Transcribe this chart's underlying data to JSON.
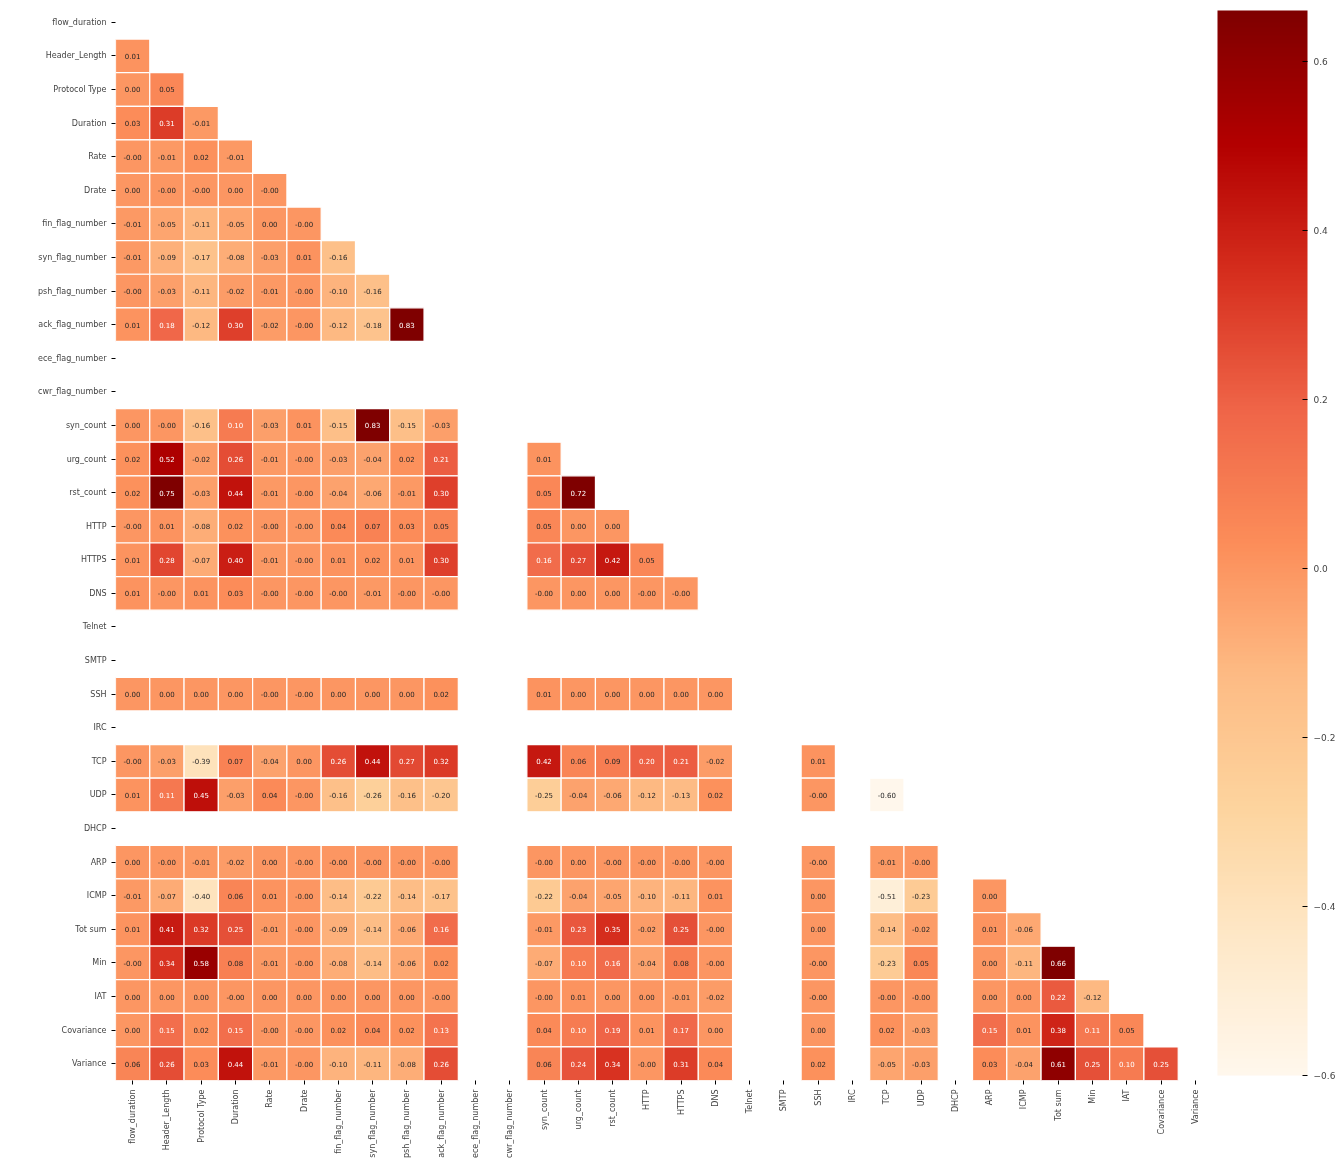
{
  "chart_data": {
    "type": "heatmap",
    "categories": [
      "flow_duration",
      "Header_Length",
      "Protocol Type",
      "Duration",
      "Rate",
      "Drate",
      "fin_flag_number",
      "syn_flag_number",
      "psh_flag_number",
      "ack_flag_number",
      "ece_flag_number",
      "cwr_flag_number",
      "syn_count",
      "urg_count",
      "rst_count",
      "HTTP",
      "HTTPS",
      "DNS",
      "Telnet",
      "SMTP",
      "SSH",
      "IRC",
      "TCP",
      "UDP",
      "DHCP",
      "ARP",
      "ICMP",
      "Tot sum",
      "Min",
      "IAT",
      "Covariance",
      "Variance"
    ],
    "y_categories": [
      "flow_duration",
      "Header_Length",
      "Protocol Type",
      "Duration",
      "Rate",
      "Drate",
      "fin_flag_number",
      "syn_flag_number",
      "psh_flag_number",
      "ack_flag_number",
      "ece_flag_number",
      "cwr_flag_number",
      "syn_count",
      "urg_count",
      "rst_count",
      "HTTP",
      "HTTPS",
      "DNS",
      "Telnet",
      "SMTP",
      "SSH",
      "IRC",
      "TCP",
      "UDP",
      "DHCP",
      "ARP",
      "ICMP",
      "Tot sum",
      "Min",
      "IAT",
      "Covariance",
      "Variance"
    ],
    "cells": [
      [
        null,
        null,
        null,
        null,
        null,
        null,
        null,
        null,
        null,
        null,
        null,
        null,
        null,
        null,
        null,
        null,
        null,
        null,
        null,
        null,
        null,
        null,
        null,
        null,
        null,
        null,
        null,
        null,
        null,
        null,
        null,
        null
      ],
      [
        0.01,
        null,
        null,
        null,
        null,
        null,
        null,
        null,
        null,
        null,
        null,
        null,
        null,
        null,
        null,
        null,
        null,
        null,
        null,
        null,
        null,
        null,
        null,
        null,
        null,
        null,
        null,
        null,
        null,
        null,
        null,
        null
      ],
      [
        0.0,
        0.05,
        null,
        null,
        null,
        null,
        null,
        null,
        null,
        null,
        null,
        null,
        null,
        null,
        null,
        null,
        null,
        null,
        null,
        null,
        null,
        null,
        null,
        null,
        null,
        null,
        null,
        null,
        null,
        null,
        null,
        null
      ],
      [
        0.03,
        0.31,
        -0.01,
        null,
        null,
        null,
        null,
        null,
        null,
        null,
        null,
        null,
        null,
        null,
        null,
        null,
        null,
        null,
        null,
        null,
        null,
        null,
        null,
        null,
        null,
        null,
        null,
        null,
        null,
        null,
        null,
        null
      ],
      [
        -0.0,
        -0.01,
        0.02,
        -0.01,
        null,
        null,
        null,
        null,
        null,
        null,
        null,
        null,
        null,
        null,
        null,
        null,
        null,
        null,
        null,
        null,
        null,
        null,
        null,
        null,
        null,
        null,
        null,
        null,
        null,
        null,
        null,
        null
      ],
      [
        0.0,
        -0.0,
        -0.0,
        0.0,
        -0.0,
        null,
        null,
        null,
        null,
        null,
        null,
        null,
        null,
        null,
        null,
        null,
        null,
        null,
        null,
        null,
        null,
        null,
        null,
        null,
        null,
        null,
        null,
        null,
        null,
        null,
        null,
        null
      ],
      [
        -0.01,
        -0.05,
        -0.11,
        -0.05,
        0.0,
        -0.0,
        null,
        null,
        null,
        null,
        null,
        null,
        null,
        null,
        null,
        null,
        null,
        null,
        null,
        null,
        null,
        null,
        null,
        null,
        null,
        null,
        null,
        null,
        null,
        null,
        null,
        null
      ],
      [
        -0.01,
        -0.09,
        -0.17,
        -0.08,
        -0.03,
        0.01,
        -0.16,
        null,
        null,
        null,
        null,
        null,
        null,
        null,
        null,
        null,
        null,
        null,
        null,
        null,
        null,
        null,
        null,
        null,
        null,
        null,
        null,
        null,
        null,
        null,
        null,
        null
      ],
      [
        -0.0,
        -0.03,
        -0.11,
        -0.02,
        -0.01,
        -0.0,
        -0.1,
        -0.16,
        null,
        null,
        null,
        null,
        null,
        null,
        null,
        null,
        null,
        null,
        null,
        null,
        null,
        null,
        null,
        null,
        null,
        null,
        null,
        null,
        null,
        null,
        null,
        null
      ],
      [
        0.01,
        0.18,
        -0.12,
        0.3,
        -0.02,
        -0.0,
        -0.12,
        -0.18,
        0.83,
        null,
        null,
        null,
        null,
        null,
        null,
        null,
        null,
        null,
        null,
        null,
        null,
        null,
        null,
        null,
        null,
        null,
        null,
        null,
        null,
        null,
        null,
        null
      ],
      [
        null,
        null,
        null,
        null,
        null,
        null,
        null,
        null,
        null,
        null,
        null,
        null,
        null,
        null,
        null,
        null,
        null,
        null,
        null,
        null,
        null,
        null,
        null,
        null,
        null,
        null,
        null,
        null,
        null,
        null,
        null,
        null
      ],
      [
        null,
        null,
        null,
        null,
        null,
        null,
        null,
        null,
        null,
        null,
        null,
        null,
        null,
        null,
        null,
        null,
        null,
        null,
        null,
        null,
        null,
        null,
        null,
        null,
        null,
        null,
        null,
        null,
        null,
        null,
        null,
        null
      ],
      [
        0.0,
        -0.0,
        -0.16,
        0.1,
        -0.03,
        0.01,
        -0.15,
        0.83,
        -0.15,
        -0.03,
        null,
        null,
        null,
        null,
        null,
        null,
        null,
        null,
        null,
        null,
        null,
        null,
        null,
        null,
        null,
        null,
        null,
        null,
        null,
        null,
        null,
        null
      ],
      [
        0.02,
        0.52,
        -0.02,
        0.26,
        -0.01,
        -0.0,
        -0.03,
        -0.04,
        0.02,
        0.21,
        null,
        null,
        0.01,
        null,
        null,
        null,
        null,
        null,
        null,
        null,
        null,
        null,
        null,
        null,
        null,
        null,
        null,
        null,
        null,
        null,
        null,
        null
      ],
      [
        0.02,
        0.75,
        -0.03,
        0.44,
        -0.01,
        -0.0,
        -0.04,
        -0.06,
        -0.01,
        0.3,
        null,
        null,
        0.05,
        0.72,
        null,
        null,
        null,
        null,
        null,
        null,
        null,
        null,
        null,
        null,
        null,
        null,
        null,
        null,
        null,
        null,
        null,
        null
      ],
      [
        -0.0,
        0.01,
        -0.08,
        0.02,
        -0.0,
        -0.0,
        0.04,
        0.07,
        0.03,
        0.05,
        null,
        null,
        0.05,
        0.0,
        0.0,
        null,
        null,
        null,
        null,
        null,
        null,
        null,
        null,
        null,
        null,
        null,
        null,
        null,
        null,
        null,
        null,
        null
      ],
      [
        0.01,
        0.28,
        -0.07,
        0.4,
        -0.01,
        -0.0,
        0.01,
        0.02,
        0.01,
        0.3,
        null,
        null,
        0.16,
        0.27,
        0.42,
        0.05,
        null,
        null,
        null,
        null,
        null,
        null,
        null,
        null,
        null,
        null,
        null,
        null,
        null,
        null,
        null,
        null
      ],
      [
        0.01,
        -0.0,
        0.01,
        0.03,
        -0.0,
        -0.0,
        -0.0,
        -0.01,
        -0.0,
        -0.0,
        null,
        null,
        -0.0,
        0.0,
        0.0,
        -0.0,
        -0.0,
        null,
        null,
        null,
        null,
        null,
        null,
        null,
        null,
        null,
        null,
        null,
        null,
        null,
        null,
        null
      ],
      [
        null,
        null,
        null,
        null,
        null,
        null,
        null,
        null,
        null,
        null,
        null,
        null,
        null,
        null,
        null,
        null,
        null,
        null,
        null,
        null,
        null,
        null,
        null,
        null,
        null,
        null,
        null,
        null,
        null,
        null,
        null,
        null
      ],
      [
        null,
        null,
        null,
        null,
        null,
        null,
        null,
        null,
        null,
        null,
        null,
        null,
        null,
        null,
        null,
        null,
        null,
        null,
        null,
        null,
        null,
        null,
        null,
        null,
        null,
        null,
        null,
        null,
        null,
        null,
        null,
        null
      ],
      [
        0.0,
        0.0,
        0.0,
        0.0,
        -0.0,
        -0.0,
        0.0,
        0.0,
        0.0,
        0.02,
        null,
        null,
        0.01,
        0.0,
        0.0,
        0.0,
        0.0,
        0.0,
        null,
        null,
        null,
        null,
        null,
        null,
        null,
        null,
        null,
        null,
        null,
        null,
        null,
        null
      ],
      [
        null,
        null,
        null,
        null,
        null,
        null,
        null,
        null,
        null,
        null,
        null,
        null,
        null,
        null,
        null,
        null,
        null,
        null,
        null,
        null,
        null,
        null,
        null,
        null,
        null,
        null,
        null,
        null,
        null,
        null,
        null,
        null
      ],
      [
        -0.0,
        -0.03,
        -0.39,
        0.07,
        -0.04,
        0.0,
        0.26,
        0.44,
        0.27,
        0.32,
        null,
        null,
        0.42,
        0.06,
        0.09,
        0.2,
        0.21,
        -0.02,
        null,
        null,
        0.01,
        null,
        null,
        null,
        null,
        null,
        null,
        null,
        null,
        null,
        null,
        null
      ],
      [
        0.01,
        0.11,
        0.45,
        -0.03,
        0.04,
        -0.0,
        -0.16,
        -0.26,
        -0.16,
        -0.2,
        null,
        null,
        -0.25,
        -0.04,
        -0.06,
        -0.12,
        -0.13,
        0.02,
        null,
        null,
        -0.0,
        null,
        -0.6,
        null,
        null,
        null,
        null,
        null,
        null,
        null,
        null,
        null
      ],
      [
        null,
        null,
        null,
        null,
        null,
        null,
        null,
        null,
        null,
        null,
        null,
        null,
        null,
        null,
        null,
        null,
        null,
        null,
        null,
        null,
        null,
        null,
        null,
        null,
        null,
        null,
        null,
        null,
        null,
        null,
        null,
        null
      ],
      [
        0.0,
        -0.0,
        -0.01,
        -0.02,
        0.0,
        -0.0,
        -0.0,
        -0.0,
        -0.0,
        -0.0,
        null,
        null,
        -0.0,
        0.0,
        -0.0,
        -0.0,
        -0.0,
        -0.0,
        null,
        null,
        -0.0,
        null,
        -0.01,
        -0.0,
        null,
        null,
        null,
        null,
        null,
        null,
        null,
        null
      ],
      [
        -0.01,
        -0.07,
        -0.4,
        0.06,
        0.01,
        -0.0,
        -0.14,
        -0.22,
        -0.14,
        -0.17,
        null,
        null,
        -0.22,
        -0.04,
        -0.05,
        -0.1,
        -0.11,
        0.01,
        null,
        null,
        0.0,
        null,
        -0.51,
        -0.23,
        null,
        0.0,
        null,
        null,
        null,
        null,
        null,
        null
      ],
      [
        0.01,
        0.41,
        0.32,
        0.25,
        -0.01,
        -0.0,
        -0.09,
        -0.14,
        -0.06,
        0.16,
        null,
        null,
        -0.01,
        0.23,
        0.35,
        -0.02,
        0.25,
        -0.0,
        null,
        null,
        0.0,
        null,
        -0.14,
        -0.02,
        null,
        0.01,
        -0.06,
        null,
        null,
        null,
        null,
        null
      ],
      [
        -0.0,
        0.34,
        0.58,
        0.08,
        -0.01,
        -0.0,
        -0.08,
        -0.14,
        -0.06,
        0.02,
        null,
        null,
        -0.07,
        0.1,
        0.16,
        -0.04,
        0.08,
        -0.0,
        null,
        null,
        -0.0,
        null,
        -0.23,
        0.05,
        null,
        0.0,
        -0.11,
        0.66,
        null,
        null,
        null,
        null
      ],
      [
        0.0,
        0.0,
        0.0,
        -0.0,
        0.0,
        0.0,
        0.0,
        0.0,
        0.0,
        -0.0,
        null,
        null,
        -0.0,
        0.01,
        0.0,
        0.0,
        -0.01,
        -0.02,
        null,
        null,
        -0.0,
        null,
        -0.0,
        -0.0,
        null,
        0.0,
        0.0,
        0.22,
        -0.12,
        null,
        null,
        null
      ],
      [
        0.0,
        0.15,
        0.02,
        0.15,
        -0.0,
        -0.0,
        0.02,
        0.04,
        0.02,
        0.13,
        null,
        null,
        0.04,
        0.1,
        0.19,
        0.01,
        0.17,
        0.0,
        null,
        null,
        0.0,
        null,
        0.02,
        -0.03,
        null,
        0.15,
        0.01,
        0.38,
        0.11,
        0.05,
        null,
        null
      ],
      [
        0.06,
        0.26,
        0.03,
        0.44,
        -0.01,
        -0.0,
        -0.1,
        -0.11,
        -0.08,
        0.26,
        null,
        null,
        0.06,
        0.24,
        0.34,
        -0.0,
        0.31,
        0.04,
        null,
        null,
        0.02,
        null,
        -0.05,
        -0.03,
        null,
        0.03,
        -0.04,
        0.61,
        0.25,
        0.1,
        0.25,
        null
      ]
    ],
    "cell_labels": [
      [
        null,
        null,
        null,
        null,
        null,
        null,
        null,
        null,
        null,
        null,
        null,
        null,
        null,
        null,
        null,
        null,
        null,
        null,
        null,
        null,
        null,
        null,
        null,
        null,
        null,
        null,
        null,
        null,
        null,
        null,
        null,
        null
      ],
      [
        "0.01",
        null,
        null,
        null,
        null,
        null,
        null,
        null,
        null,
        null,
        null,
        null,
        null,
        null,
        null,
        null,
        null,
        null,
        null,
        null,
        null,
        null,
        null,
        null,
        null,
        null,
        null,
        null,
        null,
        null,
        null,
        null
      ],
      [
        "0.00",
        "0.05",
        null,
        null,
        null,
        null,
        null,
        null,
        null,
        null,
        null,
        null,
        null,
        null,
        null,
        null,
        null,
        null,
        null,
        null,
        null,
        null,
        null,
        null,
        null,
        null,
        null,
        null,
        null,
        null,
        null,
        null
      ],
      [
        "0.03",
        "0.31",
        "-0.01",
        null,
        null,
        null,
        null,
        null,
        null,
        null,
        null,
        null,
        null,
        null,
        null,
        null,
        null,
        null,
        null,
        null,
        null,
        null,
        null,
        null,
        null,
        null,
        null,
        null,
        null,
        null,
        null,
        null
      ],
      [
        "-0.00",
        "-0.01",
        "0.02",
        "-0.01",
        null,
        null,
        null,
        null,
        null,
        null,
        null,
        null,
        null,
        null,
        null,
        null,
        null,
        null,
        null,
        null,
        null,
        null,
        null,
        null,
        null,
        null,
        null,
        null,
        null,
        null,
        null,
        null
      ],
      [
        "0.00",
        "-0.00",
        "-0.00",
        "0.00",
        "-0.00",
        null,
        null,
        null,
        null,
        null,
        null,
        null,
        null,
        null,
        null,
        null,
        null,
        null,
        null,
        null,
        null,
        null,
        null,
        null,
        null,
        null,
        null,
        null,
        null,
        null,
        null,
        null
      ],
      [
        "-0.01",
        "-0.05",
        "-0.11",
        "-0.05",
        "0.00",
        "-0.00",
        null,
        null,
        null,
        null,
        null,
        null,
        null,
        null,
        null,
        null,
        null,
        null,
        null,
        null,
        null,
        null,
        null,
        null,
        null,
        null,
        null,
        null,
        null,
        null,
        null,
        null
      ],
      [
        "-0.01",
        "-0.09",
        "-0.17",
        "-0.08",
        "-0.03",
        "0.01",
        "-0.16",
        null,
        null,
        null,
        null,
        null,
        null,
        null,
        null,
        null,
        null,
        null,
        null,
        null,
        null,
        null,
        null,
        null,
        null,
        null,
        null,
        null,
        null,
        null,
        null,
        null
      ],
      [
        "-0.00",
        "-0.03",
        "-0.11",
        "-0.02",
        "-0.01",
        "-0.00",
        "-0.10",
        "-0.16",
        null,
        null,
        null,
        null,
        null,
        null,
        null,
        null,
        null,
        null,
        null,
        null,
        null,
        null,
        null,
        null,
        null,
        null,
        null,
        null,
        null,
        null,
        null,
        null
      ],
      [
        "0.01",
        "0.18",
        "-0.12",
        "0.30",
        "-0.02",
        "-0.00",
        "-0.12",
        "-0.18",
        "0.83",
        null,
        null,
        null,
        null,
        null,
        null,
        null,
        null,
        null,
        null,
        null,
        null,
        null,
        null,
        null,
        null,
        null,
        null,
        null,
        null,
        null,
        null,
        null
      ],
      [
        null,
        null,
        null,
        null,
        null,
        null,
        null,
        null,
        null,
        null,
        null,
        null,
        null,
        null,
        null,
        null,
        null,
        null,
        null,
        null,
        null,
        null,
        null,
        null,
        null,
        null,
        null,
        null,
        null,
        null,
        null,
        null
      ],
      [
        null,
        null,
        null,
        null,
        null,
        null,
        null,
        null,
        null,
        null,
        null,
        null,
        null,
        null,
        null,
        null,
        null,
        null,
        null,
        null,
        null,
        null,
        null,
        null,
        null,
        null,
        null,
        null,
        null,
        null,
        null,
        null
      ],
      [
        "0.00",
        "-0.00",
        "-0.16",
        "0.10",
        "-0.03",
        "0.01",
        "-0.15",
        "0.83",
        "-0.15",
        "-0.03",
        null,
        null,
        null,
        null,
        null,
        null,
        null,
        null,
        null,
        null,
        null,
        null,
        null,
        null,
        null,
        null,
        null,
        null,
        null,
        null,
        null,
        null
      ],
      [
        "0.02",
        "0.52",
        "-0.02",
        "0.26",
        "-0.01",
        "-0.00",
        "-0.03",
        "-0.04",
        "0.02",
        "0.21",
        null,
        null,
        "0.01",
        null,
        null,
        null,
        null,
        null,
        null,
        null,
        null,
        null,
        null,
        null,
        null,
        null,
        null,
        null,
        null,
        null,
        null,
        null
      ],
      [
        "0.02",
        "0.75",
        "-0.03",
        "0.44",
        "-0.01",
        "-0.00",
        "-0.04",
        "-0.06",
        "-0.01",
        "0.30",
        null,
        null,
        "0.05",
        "0.72",
        null,
        null,
        null,
        null,
        null,
        null,
        null,
        null,
        null,
        null,
        null,
        null,
        null,
        null,
        null,
        null,
        null,
        null
      ],
      [
        "-0.00",
        "0.01",
        "-0.08",
        "0.02",
        "-0.00",
        "-0.00",
        "0.04",
        "0.07",
        "0.03",
        "0.05",
        null,
        null,
        "0.05",
        "0.00",
        "0.00",
        null,
        null,
        null,
        null,
        null,
        null,
        null,
        null,
        null,
        null,
        null,
        null,
        null,
        null,
        null,
        null,
        null
      ],
      [
        "0.01",
        "0.28",
        "-0.07",
        "0.40",
        "-0.01",
        "-0.00",
        "0.01",
        "0.02",
        "0.01",
        "0.30",
        null,
        null,
        "0.16",
        "0.27",
        "0.42",
        "0.05",
        null,
        null,
        null,
        null,
        null,
        null,
        null,
        null,
        null,
        null,
        null,
        null,
        null,
        null,
        null,
        null
      ],
      [
        "0.01",
        "-0.00",
        "0.01",
        "0.03",
        "-0.00",
        "-0.00",
        "-0.00",
        "-0.01",
        "-0.00",
        "-0.00",
        null,
        null,
        "-0.00",
        "0.00",
        "0.00",
        "-0.00",
        "-0.00",
        null,
        null,
        null,
        null,
        null,
        null,
        null,
        null,
        null,
        null,
        null,
        null,
        null,
        null,
        null
      ],
      [
        null,
        null,
        null,
        null,
        null,
        null,
        null,
        null,
        null,
        null,
        null,
        null,
        null,
        null,
        null,
        null,
        null,
        null,
        null,
        null,
        null,
        null,
        null,
        null,
        null,
        null,
        null,
        null,
        null,
        null,
        null,
        null
      ],
      [
        null,
        null,
        null,
        null,
        null,
        null,
        null,
        null,
        null,
        null,
        null,
        null,
        null,
        null,
        null,
        null,
        null,
        null,
        null,
        null,
        null,
        null,
        null,
        null,
        null,
        null,
        null,
        null,
        null,
        null,
        null,
        null
      ],
      [
        "0.00",
        "0.00",
        "0.00",
        "0.00",
        "-0.00",
        "-0.00",
        "0.00",
        "0.00",
        "0.00",
        "0.02",
        null,
        null,
        "0.01",
        "0.00",
        "0.00",
        "0.00",
        "0.00",
        "0.00",
        null,
        null,
        null,
        null,
        null,
        null,
        null,
        null,
        null,
        null,
        null,
        null,
        null,
        null
      ],
      [
        null,
        null,
        null,
        null,
        null,
        null,
        null,
        null,
        null,
        null,
        null,
        null,
        null,
        null,
        null,
        null,
        null,
        null,
        null,
        null,
        null,
        null,
        null,
        null,
        null,
        null,
        null,
        null,
        null,
        null,
        null,
        null
      ],
      [
        "-0.00",
        "-0.03",
        "-0.39",
        "0.07",
        "-0.04",
        "0.00",
        "0.26",
        "0.44",
        "0.27",
        "0.32",
        null,
        null,
        "0.42",
        "0.06",
        "0.09",
        "0.20",
        "0.21",
        "-0.02",
        null,
        null,
        "0.01",
        null,
        null,
        null,
        null,
        null,
        null,
        null,
        null,
        null,
        null,
        null
      ],
      [
        "0.01",
        "0.11",
        "0.45",
        "-0.03",
        "0.04",
        "-0.00",
        "-0.16",
        "-0.26",
        "-0.16",
        "-0.20",
        null,
        null,
        "-0.25",
        "-0.04",
        "-0.06",
        "-0.12",
        "-0.13",
        "0.02",
        null,
        null,
        "-0.00",
        null,
        "-0.60",
        null,
        null,
        null,
        null,
        null,
        null,
        null,
        null,
        null
      ],
      [
        null,
        null,
        null,
        null,
        null,
        null,
        null,
        null,
        null,
        null,
        null,
        null,
        null,
        null,
        null,
        null,
        null,
        null,
        null,
        null,
        null,
        null,
        null,
        null,
        null,
        null,
        null,
        null,
        null,
        null,
        null,
        null
      ],
      [
        "0.00",
        "-0.00",
        "-0.01",
        "-0.02",
        "0.00",
        "-0.00",
        "-0.00",
        "-0.00",
        "-0.00",
        "-0.00",
        null,
        null,
        "-0.00",
        "0.00",
        "-0.00",
        "-0.00",
        "-0.00",
        "-0.00",
        null,
        null,
        "-0.00",
        null,
        "-0.01",
        "-0.00",
        null,
        null,
        null,
        null,
        null,
        null,
        null,
        null
      ],
      [
        "-0.01",
        "-0.07",
        "-0.40",
        "0.06",
        "0.01",
        "-0.00",
        "-0.14",
        "-0.22",
        "-0.14",
        "-0.17",
        null,
        null,
        "-0.22",
        "-0.04",
        "-0.05",
        "-0.10",
        "-0.11",
        "0.01",
        null,
        null,
        "0.00",
        null,
        "-0.51",
        "-0.23",
        null,
        "0.00",
        null,
        null,
        null,
        null,
        null,
        null
      ],
      [
        "0.01",
        "0.41",
        "0.32",
        "0.25",
        "-0.01",
        "-0.00",
        "-0.09",
        "-0.14",
        "-0.06",
        "0.16",
        null,
        null,
        "-0.01",
        "0.23",
        "0.35",
        "-0.02",
        "0.25",
        "-0.00",
        null,
        null,
        "0.00",
        null,
        "-0.14",
        "-0.02",
        null,
        "0.01",
        "-0.06",
        null,
        null,
        null,
        null,
        null
      ],
      [
        "-0.00",
        "0.34",
        "0.58",
        "0.08",
        "-0.01",
        "-0.00",
        "-0.08",
        "-0.14",
        "-0.06",
        "0.02",
        null,
        null,
        "-0.07",
        "0.10",
        "0.16",
        "-0.04",
        "0.08",
        "-0.00",
        null,
        null,
        "-0.00",
        null,
        "-0.23",
        "0.05",
        null,
        "0.00",
        "-0.11",
        "0.66",
        null,
        null,
        null,
        null
      ],
      [
        "0.00",
        "0.00",
        "0.00",
        "-0.00",
        "0.00",
        "0.00",
        "0.00",
        "0.00",
        "0.00",
        "-0.00",
        null,
        null,
        "-0.00",
        "0.01",
        "0.00",
        "0.00",
        "-0.01",
        "-0.02",
        null,
        null,
        "-0.00",
        null,
        "-0.00",
        "-0.00",
        null,
        "0.00",
        "0.00",
        "0.22",
        "-0.12",
        null,
        null,
        null
      ],
      [
        "0.00",
        "0.15",
        "0.02",
        "0.15",
        "-0.00",
        "-0.00",
        "0.02",
        "0.04",
        "0.02",
        "0.13",
        null,
        null,
        "0.04",
        "0.10",
        "0.19",
        "0.01",
        "0.17",
        "0.00",
        null,
        null,
        "0.00",
        null,
        "0.02",
        "-0.03",
        null,
        "0.15",
        "0.01",
        "0.38",
        "0.11",
        "0.05",
        null,
        null
      ],
      [
        "0.06",
        "0.26",
        "0.03",
        "0.44",
        "-0.01",
        "-0.00",
        "-0.10",
        "-0.11",
        "-0.08",
        "0.26",
        null,
        null,
        "0.06",
        "0.24",
        "0.34",
        "-0.00",
        "0.31",
        "0.04",
        null,
        null,
        "0.02",
        null,
        "-0.05",
        "-0.03",
        null,
        "0.03",
        "-0.04",
        "0.61",
        "0.25",
        "0.10",
        "0.25",
        null
      ]
    ],
    "clim": [
      -0.6,
      0.66
    ],
    "cticks": [
      {
        "value": -0.6,
        "label": "−0.6"
      },
      {
        "value": -0.4,
        "label": "−0.4"
      },
      {
        "value": -0.2,
        "label": "−0.2"
      },
      {
        "value": 0,
        "label": "0.0"
      },
      {
        "value": 0.2,
        "label": "0.2"
      },
      {
        "value": 0.4,
        "label": "0.4"
      },
      {
        "value": 0.6,
        "label": "0.6"
      }
    ]
  }
}
